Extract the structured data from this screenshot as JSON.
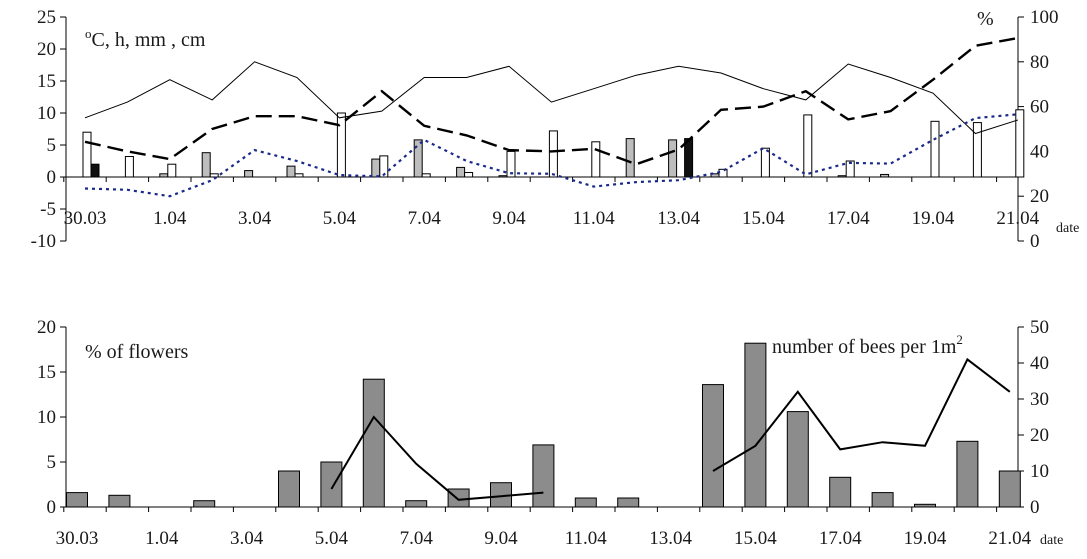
{
  "chart_data": [
    {
      "type": "bar",
      "left_axis_label": "°C, h, mm , cm",
      "left_axis_label_parts": {
        "degree": "o",
        "text": "C, h, mm , cm"
      },
      "right_axis_label": "%",
      "x_unit_label": "date",
      "left_ylim": [
        -10,
        25
      ],
      "left_ticks": [
        "-10",
        "-5",
        "0",
        "5",
        "10",
        "15",
        "20",
        "25"
      ],
      "right_ylim": [
        0,
        100
      ],
      "right_ticks": [
        "0",
        "20",
        "40",
        "60",
        "80",
        "100"
      ],
      "x_tick_labels": [
        "30.03",
        "1.04",
        "3.04",
        "5.04",
        "7.04",
        "9.04",
        "11.04",
        "13.04",
        "15.04",
        "17.04",
        "19.04",
        "21.04"
      ],
      "dates": [
        "30.03",
        "31.03",
        "1.04",
        "2.04",
        "3.04",
        "4.04",
        "5.04",
        "6.04",
        "7.04",
        "8.04",
        "9.04",
        "10.04",
        "11.04",
        "12.04",
        "13.04",
        "14.04",
        "15.04",
        "16.04",
        "17.04",
        "18.04",
        "19.04",
        "20.04",
        "21.04"
      ],
      "bars_white": [
        7,
        3.2,
        2,
        0.5,
        0,
        0.5,
        10,
        3.3,
        0.5,
        0.7,
        4,
        7.2,
        5.5,
        0,
        0,
        1.2,
        4.5,
        9.7,
        2.5,
        0,
        8.7,
        8.5,
        10.5
      ],
      "bars_gray": [
        0,
        0,
        0.5,
        3.8,
        1,
        1.7,
        0,
        2.8,
        5.8,
        1.5,
        0.2,
        0,
        0,
        6,
        5.8,
        0.5,
        0,
        0,
        0.2,
        0.4,
        0,
        0,
        0
      ],
      "bars_black": [
        2,
        0,
        0,
        0,
        0,
        0,
        0,
        0,
        0,
        0,
        0,
        0,
        0,
        0,
        6,
        0,
        0,
        0,
        0,
        0,
        0,
        0,
        0
      ],
      "thin_line_right": [
        55,
        62,
        72,
        63,
        80,
        73,
        55,
        58,
        73,
        73,
        78,
        62,
        68,
        74,
        78,
        75,
        68,
        63,
        79,
        73,
        66,
        48,
        54
      ],
      "dashed_line_left": [
        5.5,
        4,
        2.8,
        7.5,
        9.5,
        9.5,
        8.1,
        13.4,
        8,
        6.5,
        4.2,
        4,
        4.4,
        2,
        4.3,
        10.5,
        11,
        13.4,
        9,
        10.3,
        15.2,
        20.5,
        21.7
      ],
      "dotted_line_left": [
        -1.8,
        -2,
        -3,
        -0.5,
        4.2,
        2.5,
        0.3,
        0.1,
        5.8,
        2.5,
        0.6,
        0.5,
        -1.5,
        -0.8,
        -0.5,
        0.8,
        4.5,
        0.4,
        2.2,
        2.1,
        5.8,
        9.2,
        9.8
      ]
    },
    {
      "type": "bar",
      "left_label": "% of flowers",
      "right_label": "number of bees per 1m",
      "right_label_superscript": "2",
      "x_unit_label": "date",
      "left_ylim": [
        0,
        20
      ],
      "left_ticks": [
        "0",
        "5",
        "10",
        "15",
        "20"
      ],
      "right_ylim": [
        0,
        50
      ],
      "right_ticks": [
        "0",
        "10",
        "20",
        "30",
        "40",
        "50"
      ],
      "x_tick_labels": [
        "30.03",
        "1.04",
        "3.04",
        "5.04",
        "7.04",
        "9.04",
        "11.04",
        "13.04",
        "15.04",
        "17.04",
        "19.04",
        "21.04"
      ],
      "dates": [
        "30.03",
        "31.03",
        "1.04",
        "2.04",
        "3.04",
        "4.04",
        "5.04",
        "6.04",
        "7.04",
        "8.04",
        "9.04",
        "10.04",
        "11.04",
        "12.04",
        "13.04",
        "14.04",
        "15.04",
        "16.04",
        "17.04",
        "18.04",
        "19.04",
        "20.04",
        "21.04"
      ],
      "flowers_percent": [
        1.6,
        1.3,
        0,
        0.7,
        0,
        4,
        5,
        14.2,
        0.7,
        2,
        2.7,
        6.9,
        1,
        1,
        0,
        13.6,
        18.2,
        10.6,
        3.3,
        1.6,
        0.3,
        7.3,
        4
      ],
      "bees_segment_1": {
        "dates": [
          "5.04",
          "6.04",
          "7.04",
          "8.04",
          "9.04",
          "10.04"
        ],
        "values": [
          5,
          25,
          12,
          2,
          3,
          4
        ]
      },
      "bees_segment_2": {
        "dates": [
          "14.04",
          "15.04",
          "16.04",
          "17.04",
          "18.04",
          "19.04",
          "20.04",
          "21.04"
        ],
        "values": [
          10,
          17,
          32,
          16,
          18,
          17,
          41,
          32
        ]
      }
    }
  ]
}
